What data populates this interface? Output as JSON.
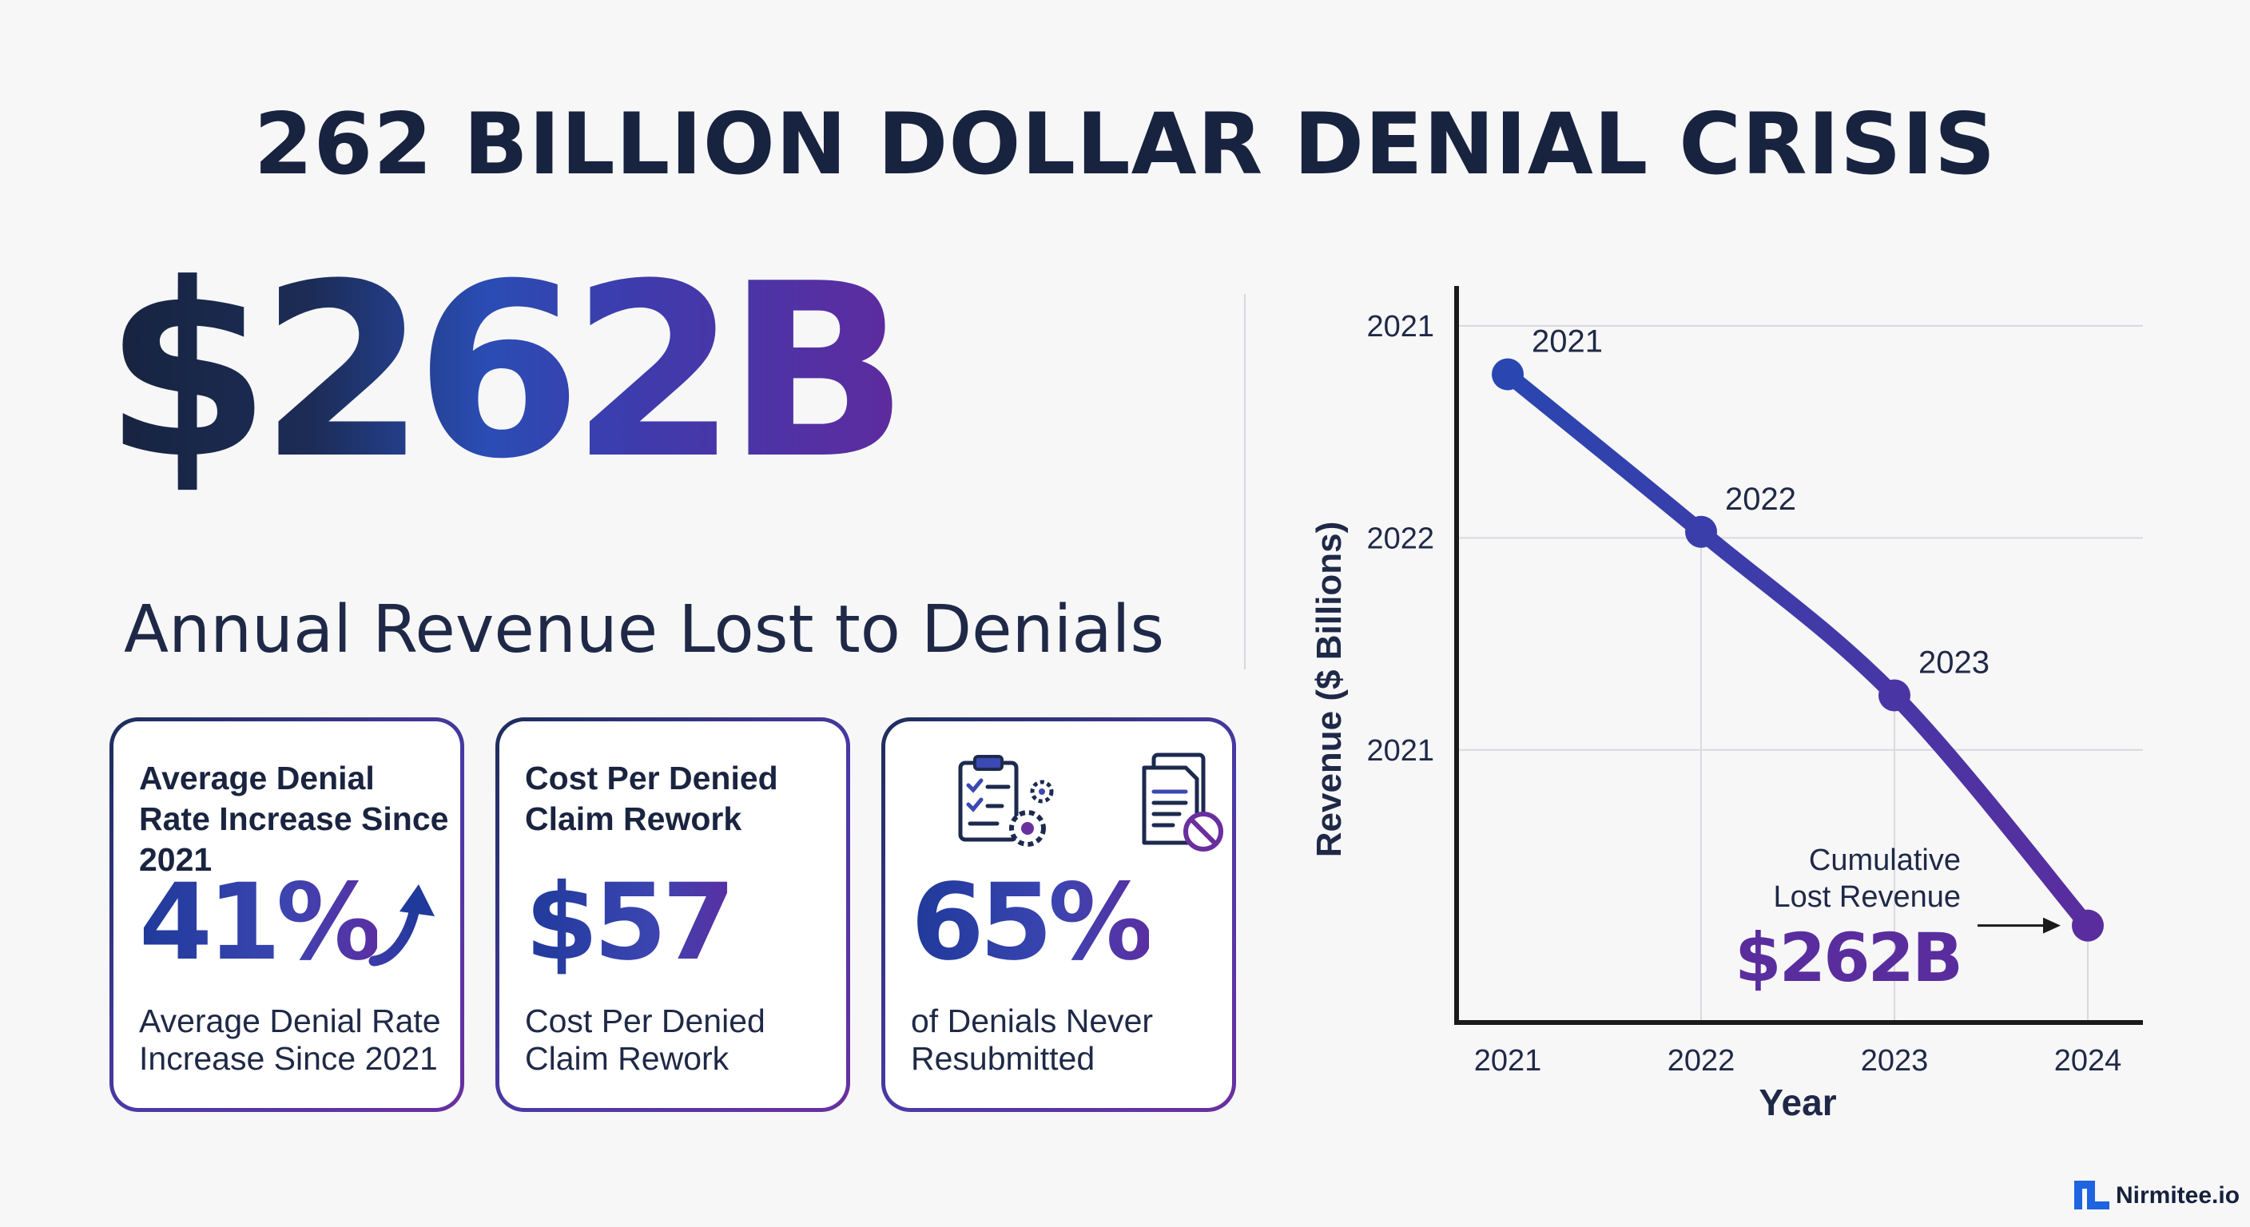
{
  "title": "262 BILLION DOLLAR DENIAL CRISIS",
  "headline": {
    "value": "$262B",
    "caption": "Annual Revenue Lost to Denials"
  },
  "cards": [
    {
      "heading": "Average Denial Rate Increase Since 2021",
      "value": "41%",
      "description": "Average Denial Rate Increase Since 2021",
      "icon": "trend-up-arrow-icon"
    },
    {
      "heading": "Cost Per Denied Claim Rework",
      "value": "$57",
      "description": "Cost Per Denied Claim Rework"
    },
    {
      "value": "65%",
      "description": "of Denials Never Resubmitted",
      "icons": [
        "clipboard-gears-icon",
        "documents-blocked-icon"
      ]
    }
  ],
  "chart_data": {
    "type": "line",
    "xlabel": "Year",
    "ylabel": "Revenue ($ Billions)",
    "x": [
      "2021",
      "2022",
      "2023",
      "2024"
    ],
    "y_tick_labels": [
      "2021",
      "2022",
      "2021"
    ],
    "series": [
      {
        "values": [
          0.87,
          0.61,
          0.34,
          -0.04
        ],
        "point_labels": [
          "2021",
          "2022",
          "2023",
          ""
        ]
      }
    ],
    "ylim": [
      -0.2,
      1.0
    ],
    "grid": true,
    "annotation": {
      "line1": "Cumulative",
      "line2": "Lost Revenue",
      "value": "$262B",
      "target_index": 3
    },
    "colors": {
      "start": "#2a46b0",
      "end": "#5a2d9e",
      "axis": "#1a1a1a",
      "grid": "#d9d9de"
    }
  },
  "brand": {
    "name": "Nirmitee.io",
    "icon": "nirmitee-logo-icon",
    "color": "#1e63e0"
  }
}
